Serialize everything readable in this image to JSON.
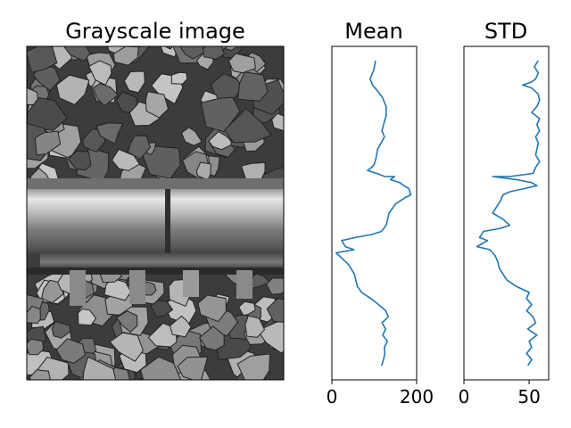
{
  "chart_data": [
    {
      "type": "image",
      "title": "Grayscale image"
    },
    {
      "type": "line",
      "orientation": "vertical-profile",
      "title": "Mean",
      "xlim": [
        0,
        200
      ],
      "ylim": [
        0,
        100
      ],
      "xticks": [
        "0",
        "200"
      ],
      "grid": false,
      "series": [
        {
          "color": "#1f77b4",
          "points": [
            [
              103,
              0
            ],
            [
              99,
              3
            ],
            [
              90,
              6
            ],
            [
              96,
              8
            ],
            [
              108,
              10
            ],
            [
              119,
              12
            ],
            [
              128,
              15
            ],
            [
              128,
              18
            ],
            [
              122,
              21
            ],
            [
              118,
              23
            ],
            [
              124,
              25
            ],
            [
              116,
              27
            ],
            [
              108,
              29
            ],
            [
              104,
              32
            ],
            [
              100,
              34
            ],
            [
              94,
              35
            ],
            [
              84,
              36
            ],
            [
              106,
              37
            ],
            [
              125,
              38
            ],
            [
              148,
              38
            ],
            [
              138,
              39
            ],
            [
              160,
              40
            ],
            [
              170,
              41
            ],
            [
              182,
              42
            ],
            [
              186,
              44
            ],
            [
              172,
              45
            ],
            [
              150,
              47
            ],
            [
              135,
              50
            ],
            [
              128,
              54
            ],
            [
              117,
              56
            ],
            [
              95,
              57
            ],
            [
              55,
              58
            ],
            [
              23,
              59
            ],
            [
              32,
              61
            ],
            [
              52,
              62
            ],
            [
              10,
              63
            ],
            [
              25,
              65
            ],
            [
              40,
              67
            ],
            [
              53,
              70
            ],
            [
              60,
              74
            ],
            [
              70,
              76
            ],
            [
              92,
              78
            ],
            [
              110,
              80
            ],
            [
              127,
              82
            ],
            [
              133,
              84
            ],
            [
              118,
              86
            ],
            [
              127,
              88
            ],
            [
              120,
              90
            ],
            [
              131,
              92
            ],
            [
              124,
              94
            ],
            [
              125,
              96
            ],
            [
              122,
              98
            ],
            [
              117,
              100
            ]
          ]
        }
      ]
    },
    {
      "type": "line",
      "orientation": "vertical-profile",
      "title": "STD",
      "xlim": [
        0,
        65
      ],
      "ylim": [
        0,
        100
      ],
      "xticks": [
        "0",
        "50"
      ],
      "grid": false,
      "series": [
        {
          "color": "#1f77b4",
          "points": [
            [
              57,
              0
            ],
            [
              54,
              2
            ],
            [
              57,
              4
            ],
            [
              55,
              6
            ],
            [
              52,
              7
            ],
            [
              45,
              8
            ],
            [
              52,
              9
            ],
            [
              57,
              11
            ],
            [
              58,
              13
            ],
            [
              56,
              15
            ],
            [
              52,
              17
            ],
            [
              58,
              19
            ],
            [
              56,
              21
            ],
            [
              58,
              23
            ],
            [
              55,
              25
            ],
            [
              57,
              27
            ],
            [
              56,
              29
            ],
            [
              55,
              31
            ],
            [
              58,
              33
            ],
            [
              55,
              35
            ],
            [
              53,
              37
            ],
            [
              35,
              38
            ],
            [
              22,
              38
            ],
            [
              40,
              39
            ],
            [
              52,
              40
            ],
            [
              56,
              41
            ],
            [
              46,
              42
            ],
            [
              35,
              43
            ],
            [
              30,
              44
            ],
            [
              28,
              46
            ],
            [
              25,
              48
            ],
            [
              22,
              50
            ],
            [
              30,
              52
            ],
            [
              35,
              54
            ],
            [
              28,
              55
            ],
            [
              15,
              56
            ],
            [
              12,
              58
            ],
            [
              18,
              59
            ],
            [
              10,
              61
            ],
            [
              20,
              62
            ],
            [
              24,
              64
            ],
            [
              26,
              66
            ],
            [
              27,
              68
            ],
            [
              30,
              70
            ],
            [
              33,
              72
            ],
            [
              40,
              74
            ],
            [
              50,
              76
            ],
            [
              48,
              78
            ],
            [
              52,
              80
            ],
            [
              48,
              82
            ],
            [
              53,
              84
            ],
            [
              55,
              86
            ],
            [
              49,
              88
            ],
            [
              56,
              90
            ],
            [
              50,
              92
            ],
            [
              52,
              94
            ],
            [
              48,
              96
            ],
            [
              52,
              98
            ],
            [
              49,
              100
            ]
          ]
        }
      ]
    }
  ]
}
